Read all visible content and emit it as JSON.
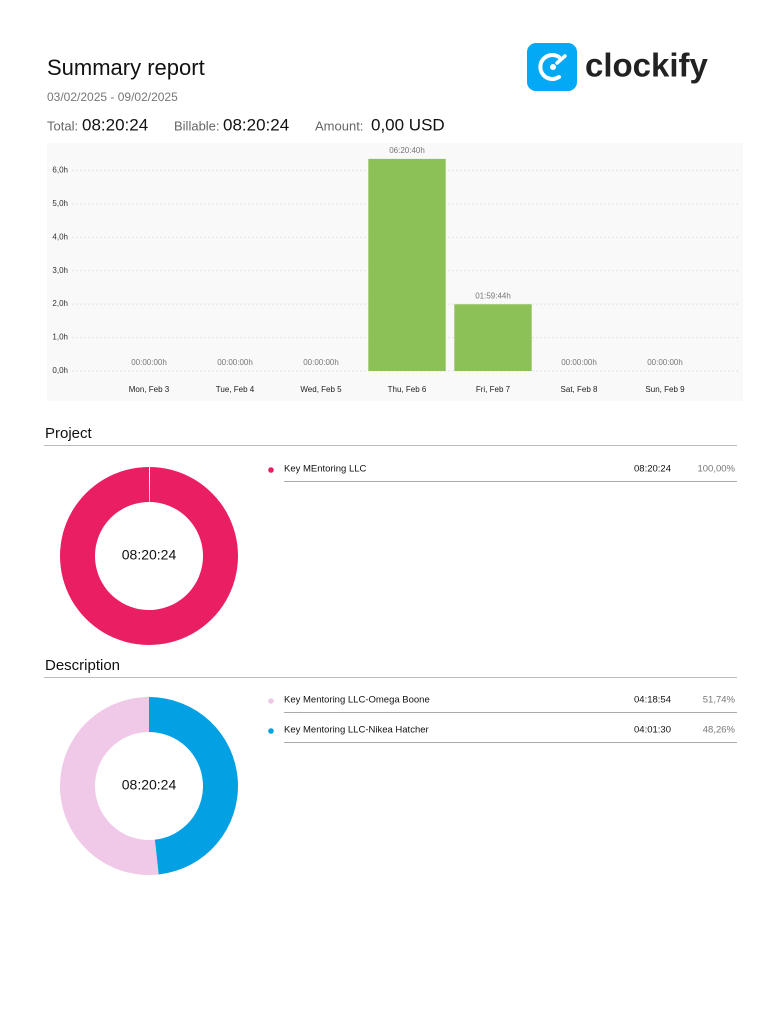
{
  "header": {
    "title": "Summary report",
    "date_range": "03/02/2025 - 09/02/2025",
    "logo_text": "clockify"
  },
  "totals": {
    "total_label": "Total:",
    "total": "08:20:24",
    "billable_label": "Billable:",
    "billable": "08:20:24",
    "amount_label": "Amount:",
    "amount": "0,00 USD"
  },
  "chart_data": {
    "type": "bar",
    "categories": [
      "Mon, Feb 3",
      "Tue, Feb 4",
      "Wed, Feb 5",
      "Thu, Feb 6",
      "Fri, Feb 7",
      "Sat, Feb 8",
      "Sun, Feb 9"
    ],
    "values": [
      0,
      0,
      0,
      6.3444,
      1.9956,
      0,
      0
    ],
    "value_labels": [
      "00:00:00h",
      "00:00:00h",
      "00:00:00h",
      "06:20:40h",
      "01:59:44h",
      "00:00:00h",
      "00:00:00h"
    ],
    "color": "#8bc157",
    "ylim": [
      0,
      6.7
    ],
    "yticks": [
      {
        "value": 0,
        "label": "0,0h"
      },
      {
        "value": 1,
        "label": "1,0h"
      },
      {
        "value": 2,
        "label": "2,0h"
      },
      {
        "value": 3,
        "label": "3,0h"
      },
      {
        "value": 4,
        "label": "4,0h"
      },
      {
        "value": 5,
        "label": "5,0h"
      },
      {
        "value": 6,
        "label": "6,0h"
      }
    ],
    "grid": true
  },
  "project": {
    "title": "Project",
    "total": "08:20:24",
    "items": [
      {
        "name": "Key MEntoring LLC",
        "color": "#e91e63",
        "duration": "08:20:24",
        "percent": 100,
        "percent_label": "100,00%"
      }
    ]
  },
  "description": {
    "title": "Description",
    "total": "08:20:24",
    "items": [
      {
        "name": "Key Mentoring LLC-Omega Boone",
        "color": "#f0c8e8",
        "duration": "04:18:54",
        "percent": 51.74,
        "percent_label": "51,74%"
      },
      {
        "name": "Key Mentoring LLC-Nikea Hatcher",
        "color": "#03a0e3",
        "duration": "04:01:30",
        "percent": 48.26,
        "percent_label": "48,26%"
      }
    ]
  }
}
